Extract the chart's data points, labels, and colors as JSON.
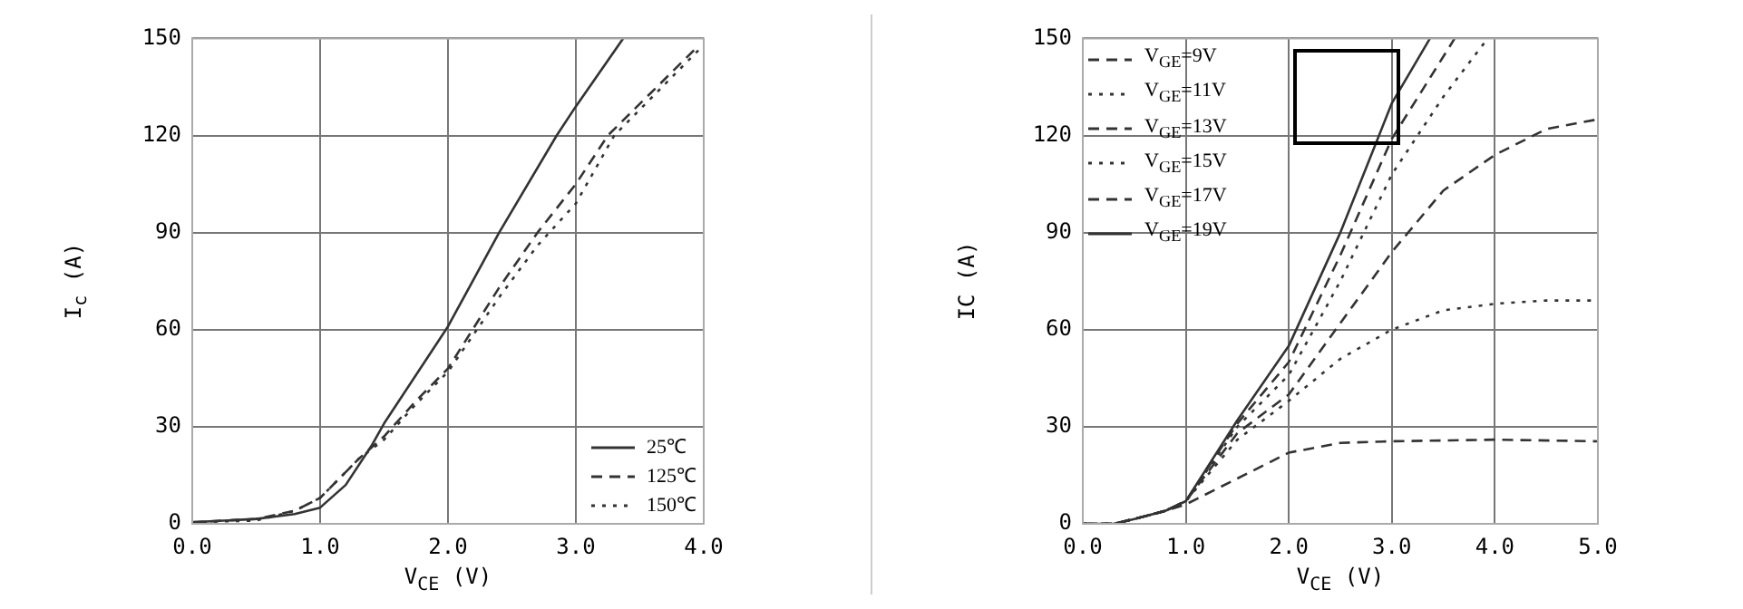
{
  "chart_data": [
    {
      "type": "line",
      "xlabel": "V$_{CE}$ (V)",
      "ylabel": "I$_{c}$ (A)",
      "xlim": [
        0,
        4
      ],
      "ylim": [
        0,
        150
      ],
      "xticks": [
        {
          "value": 0,
          "label": "0.0"
        },
        {
          "value": 1,
          "label": "1.0"
        },
        {
          "value": 2,
          "label": "2.0"
        },
        {
          "value": 3,
          "label": "3.0"
        },
        {
          "value": 4,
          "label": "4.0"
        }
      ],
      "yticks": [
        0,
        30,
        60,
        90,
        120,
        150
      ],
      "grid": true,
      "legend": "bottom right",
      "series": [
        {
          "name": "25℃",
          "color": "#333333",
          "line_style": "solid",
          "x": [
            0,
            0.5,
            0.8,
            1.0,
            1.2,
            1.4,
            1.5,
            1.75,
            2.0,
            2.4,
            2.85,
            3.0,
            3.37
          ],
          "values": [
            0.5,
            1.5,
            3,
            5,
            12,
            24,
            31,
            46,
            61,
            90,
            120,
            129,
            150
          ]
        },
        {
          "name": "125℃",
          "color": "#333333",
          "line_style": "dashed",
          "x": [
            0,
            0.5,
            0.8,
            1.0,
            1.3,
            1.5,
            1.75,
            2.0,
            2.4,
            2.7,
            3.0,
            3.25,
            3.94
          ],
          "values": [
            0.5,
            1.5,
            4,
            8,
            20,
            27,
            38,
            48,
            73,
            90,
            105,
            120,
            147
          ]
        },
        {
          "name": "150℃",
          "color": "#333333",
          "line_style": "dotted",
          "x": [
            0,
            0.5,
            0.8,
            1.0,
            1.3,
            1.5,
            1.75,
            2.0,
            2.4,
            2.7,
            3.0,
            3.3,
            4.0
          ],
          "values": [
            0.5,
            1,
            4,
            8,
            20,
            26,
            37,
            47,
            70,
            86,
            99,
            120,
            148
          ]
        }
      ]
    },
    {
      "type": "line",
      "xlabel": "V$_{CE}$ (V)",
      "ylabel": "IC (A)",
      "xlim": [
        0,
        5
      ],
      "ylim": [
        0,
        150
      ],
      "xticks": [
        {
          "value": 0,
          "label": "0.0"
        },
        {
          "value": 1,
          "label": "1.0"
        },
        {
          "value": 2,
          "label": "2.0"
        },
        {
          "value": 3,
          "label": "3.0"
        },
        {
          "value": 4,
          "label": "4.0"
        },
        {
          "value": 5,
          "label": "5.0"
        }
      ],
      "yticks": [
        0,
        30,
        60,
        90,
        120,
        150
      ],
      "grid": true,
      "legend": "top left",
      "series": [
        {
          "name": "V$_{GE}$=9V",
          "color": "#333333",
          "line_style": "dashed",
          "x": [
            0,
            0.3,
            0.5,
            0.8,
            1.0,
            1.5,
            2.0,
            2.5,
            3.0,
            4.0,
            5.0
          ],
          "values": [
            0,
            0,
            1.5,
            4,
            6,
            14,
            22,
            25,
            25.5,
            26,
            25.5
          ]
        },
        {
          "name": "V$_{GE}$=11V",
          "color": "#333333",
          "line_style": "dotted",
          "x": [
            0,
            0.3,
            0.5,
            0.8,
            1.0,
            1.5,
            2.0,
            2.5,
            3.0,
            3.5,
            4.0,
            4.5,
            5.0
          ],
          "values": [
            0,
            0,
            1.5,
            4,
            7,
            26,
            38,
            51,
            60,
            66,
            68,
            69,
            69
          ]
        },
        {
          "name": "V$_{GE}$=13V",
          "color": "#333333",
          "line_style": "dashed",
          "x": [
            0,
            0.3,
            0.5,
            0.8,
            1.0,
            1.5,
            2.0,
            2.5,
            3.0,
            3.5,
            4.0,
            4.5,
            5.0
          ],
          "values": [
            0,
            0,
            1.5,
            4,
            7,
            28,
            40,
            62,
            84,
            103,
            114,
            122,
            125
          ]
        },
        {
          "name": "V$_{GE}$=15V",
          "color": "#333333",
          "line_style": "dotted",
          "x": [
            0,
            0.3,
            0.5,
            0.8,
            1.0,
            1.5,
            2.0,
            2.5,
            3.0,
            3.5,
            3.93
          ],
          "values": [
            0,
            0,
            1.5,
            4,
            7,
            30,
            46,
            75,
            108,
            132,
            150
          ]
        },
        {
          "name": "V$_{GE}$=17V",
          "color": "#333333",
          "line_style": "dashed",
          "x": [
            0,
            0.3,
            0.5,
            0.8,
            1.0,
            1.5,
            2.0,
            2.5,
            3.0,
            3.61
          ],
          "values": [
            0,
            0,
            1.5,
            4,
            7,
            31,
            50,
            83,
            119,
            150
          ]
        },
        {
          "name": "V$_{GE}$=19V",
          "color": "#333333",
          "line_style": "solid",
          "x": [
            0,
            0.3,
            0.5,
            0.8,
            1.0,
            1.5,
            2.0,
            2.5,
            3.0,
            3.37
          ],
          "values": [
            0,
            0,
            1.5,
            4,
            7,
            32,
            55,
            90,
            130,
            150
          ]
        }
      ]
    }
  ]
}
